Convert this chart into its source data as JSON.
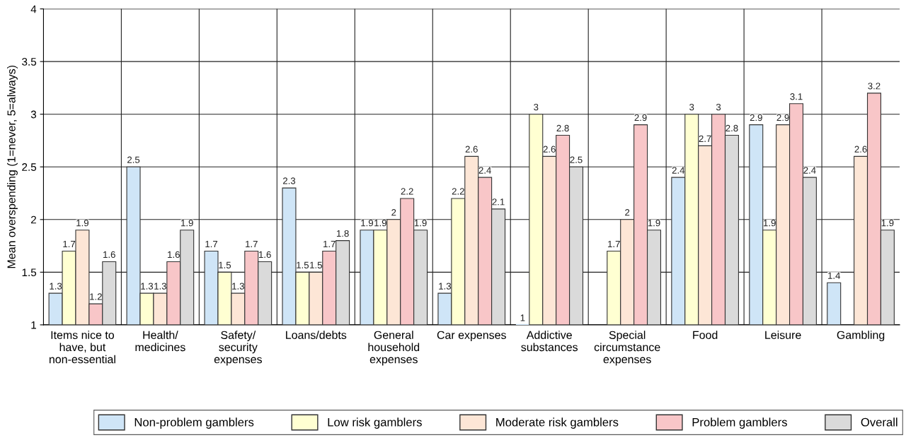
{
  "chart_data": {
    "type": "bar",
    "ylabel": "Mean overspending (1=never, 5=always)",
    "categories": [
      "Items nice to\nhave, but\nnon-essential",
      "Health/\nmedicines",
      "Safety/\nsecurity\nexpenses",
      "Loans/debts",
      "General\nhousehold\nexpenses",
      "Car expenses",
      "Addictive\nsubstances",
      "Special\ncircumstance\nexpenses",
      "Food",
      "Leisure",
      "Gambling"
    ],
    "series": [
      {
        "name": "Non-problem gamblers",
        "color": "#cfe5f7",
        "values": [
          1.3,
          2.5,
          1.7,
          2.3,
          1.9,
          1.3,
          1,
          null,
          2.4,
          2.9,
          1.4
        ]
      },
      {
        "name": "Low risk gamblers",
        "color": "#ffffd2",
        "values": [
          1.7,
          1.3,
          1.5,
          1.5,
          1.9,
          2.2,
          3,
          1.7,
          3,
          1.9,
          null
        ]
      },
      {
        "name": "Moderate risk gamblers",
        "color": "#fde6d6",
        "values": [
          1.9,
          1.3,
          1.3,
          1.5,
          2,
          2.6,
          2.6,
          2,
          2.7,
          2.9,
          2.6
        ]
      },
      {
        "name": "Problem gamblers",
        "color": "#f8c6c8",
        "values": [
          1.2,
          1.6,
          1.7,
          1.7,
          2.2,
          2.4,
          2.8,
          2.9,
          3,
          3.1,
          3.2
        ]
      },
      {
        "name": "Overall",
        "color": "#dadada",
        "values": [
          1.6,
          1.9,
          1.6,
          1.8,
          1.9,
          2.1,
          2.5,
          1.9,
          2.8,
          2.4,
          1.9
        ]
      }
    ],
    "ylim": [
      1,
      4
    ],
    "yticks": [
      1,
      1.5,
      2,
      2.5,
      3,
      3.5,
      4
    ],
    "grid": true,
    "legend": "bottom",
    "data_labels": true
  }
}
